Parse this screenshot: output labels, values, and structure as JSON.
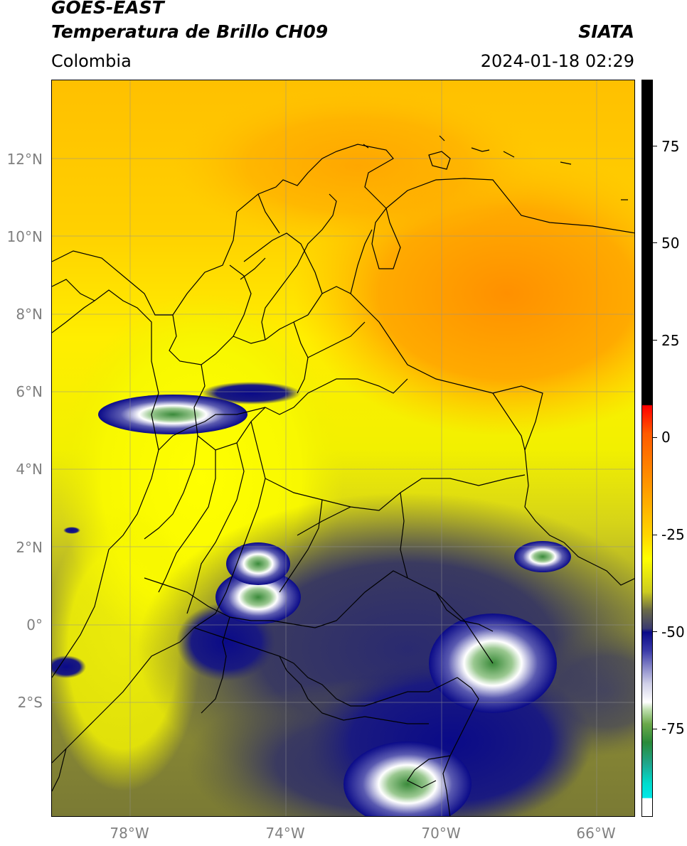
{
  "header": {
    "satellite": "GOES-EAST",
    "product": "Temperatura de Brillo CH09",
    "region": "Colombia",
    "agency": "SIATA",
    "datetime": "2024-01-18 02:29"
  },
  "map": {
    "lat_labels": [
      "12°N",
      "10°N",
      "8°N",
      "6°N",
      "4°N",
      "2°N",
      "0°",
      "2°S"
    ],
    "lon_labels": [
      "78°W",
      "74°W",
      "70°W",
      "66°W"
    ],
    "colors": {
      "warm": "#ff9a00",
      "mid": "#ffff00",
      "cool": "#4a4a40",
      "cold": "#0a0a88",
      "coldest": "#2a8a3a"
    }
  },
  "colorbar": {
    "tick_labels": [
      "75",
      "50",
      "25",
      "0",
      "-25",
      "-50",
      "-75"
    ],
    "range": [
      -90,
      90
    ]
  }
}
